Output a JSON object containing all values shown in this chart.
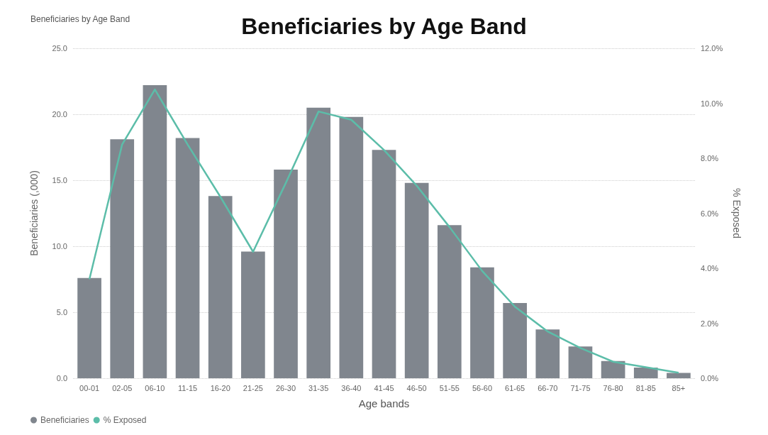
{
  "chart_data": {
    "type": "bar",
    "title": "Beneficiaries by Age Band",
    "subtitle": "Beneficiaries by Age Band",
    "xlabel": "Age bands",
    "ylabel": "Beneficiaries (,000)",
    "y2label": "% Exposed",
    "categories": [
      "00-01",
      "02-05",
      "06-10",
      "11-15",
      "16-20",
      "21-25",
      "26-30",
      "31-35",
      "36-40",
      "41-45",
      "46-50",
      "51-55",
      "56-60",
      "61-65",
      "66-70",
      "71-75",
      "76-80",
      "81-85",
      "85+"
    ],
    "series": [
      {
        "name": "Beneficiaries",
        "color": "#80868e",
        "values": [
          7.6,
          18.1,
          22.2,
          18.2,
          13.8,
          9.6,
          15.8,
          20.5,
          19.8,
          17.3,
          14.8,
          11.6,
          8.4,
          5.7,
          3.7,
          2.4,
          1.3,
          0.8,
          0.4
        ]
      },
      {
        "name": "% Exposed",
        "type": "line",
        "axis": "y2",
        "color": "#5cbda9",
        "values": [
          3.6,
          8.5,
          10.5,
          8.5,
          6.6,
          4.6,
          7.1,
          9.7,
          9.4,
          8.3,
          7.0,
          5.5,
          3.9,
          2.6,
          1.7,
          1.1,
          0.6,
          0.4,
          0.2
        ]
      }
    ],
    "ylim": [
      0,
      25
    ],
    "yticks": [
      {
        "value": 0,
        "label": "0.0"
      },
      {
        "value": 5,
        "label": "5.0"
      },
      {
        "value": 10,
        "label": "10.0"
      },
      {
        "value": 15,
        "label": "15.0"
      },
      {
        "value": 20,
        "label": "20.0"
      },
      {
        "value": 25,
        "label": "25.0"
      }
    ],
    "y2lim": [
      0,
      12
    ],
    "y2ticks": [
      {
        "value": 0,
        "label": "0.0%"
      },
      {
        "value": 2,
        "label": "2.0%"
      },
      {
        "value": 4,
        "label": "4.0%"
      },
      {
        "value": 6,
        "label": "6.0%"
      },
      {
        "value": 8,
        "label": "8.0%"
      },
      {
        "value": 10,
        "label": "10.0%"
      },
      {
        "value": 12,
        "label": "12.0%"
      }
    ],
    "grid": "y",
    "legend": "bottom left",
    "marker": "none",
    "line_style": "solid"
  }
}
